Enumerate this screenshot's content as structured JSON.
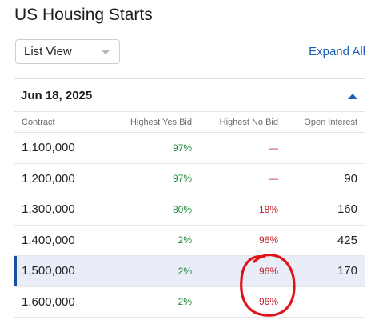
{
  "header": {
    "title": "US Housing Starts"
  },
  "controls": {
    "view_select": {
      "value": "List View"
    },
    "expand_label": "Expand All"
  },
  "group": {
    "date": "Jun 18, 2025"
  },
  "table": {
    "columns": [
      "Contract",
      "Highest Yes Bid",
      "Highest No Bid",
      "Open Interest"
    ],
    "rows": [
      {
        "contract": "1,100,000",
        "yes": "97%",
        "no": "—",
        "oi": ""
      },
      {
        "contract": "1,200,000",
        "yes": "97%",
        "no": "—",
        "oi": "90"
      },
      {
        "contract": "1,300,000",
        "yes": "80%",
        "no": "18%",
        "oi": "160"
      },
      {
        "contract": "1,400,000",
        "yes": "2%",
        "no": "96%",
        "oi": "425"
      },
      {
        "contract": "1,500,000",
        "yes": "2%",
        "no": "96%",
        "oi": "170"
      },
      {
        "contract": "1,600,000",
        "yes": "2%",
        "no": "96%",
        "oi": ""
      }
    ]
  },
  "colors": {
    "accent": "#1a5fb4",
    "yes": "#1e8a3c",
    "no": "#c41d2b",
    "selected_row": "#e8edf8",
    "annotation": "#e0141b"
  }
}
